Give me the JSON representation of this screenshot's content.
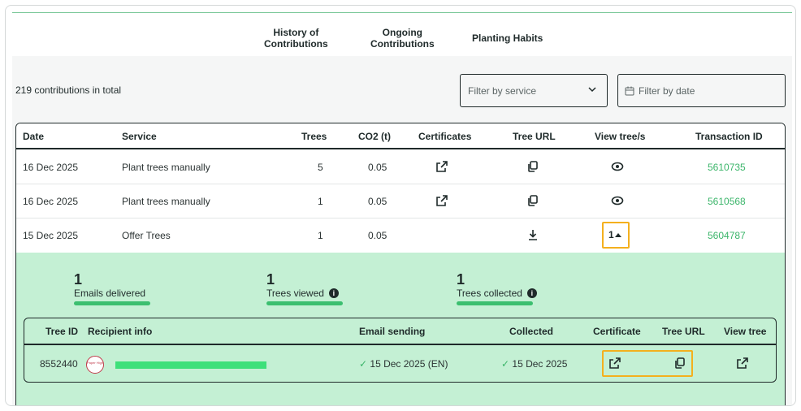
{
  "tabs": [
    {
      "label_line1": "History of",
      "label_line2": "Contributions"
    },
    {
      "label_line1": "Ongoing",
      "label_line2": "Contributions"
    },
    {
      "label_line1": "Planting Habits",
      "label_line2": ""
    }
  ],
  "total_text": "219 contributions in total",
  "filters": {
    "service_placeholder": "Filter by service",
    "date_placeholder": "Filter by date"
  },
  "columns": [
    "Date",
    "Service",
    "Trees",
    "CO2 (t)",
    "Certificates",
    "Tree URL",
    "View tree/s",
    "Transaction ID"
  ],
  "rows": [
    {
      "date": "16 Dec 2025",
      "service": "Plant trees manually",
      "trees": "5",
      "co2": "0.05",
      "certificate_icon": "external-link-icon",
      "tree_url_icon": "copy-icon",
      "view_icon": "eye-icon",
      "transaction": "5610735"
    },
    {
      "date": "16 Dec 2025",
      "service": "Plant trees manually",
      "trees": "1",
      "co2": "0.05",
      "certificate_icon": "external-link-icon",
      "tree_url_icon": "copy-icon",
      "view_icon": "eye-icon",
      "transaction": "5610568"
    },
    {
      "date": "15 Dec 2025",
      "service": "Offer Trees",
      "trees": "1",
      "co2": "0.05",
      "certificate_icon": "",
      "tree_url_icon": "download-icon",
      "view_toggle": "1",
      "transaction": "5604787"
    }
  ],
  "stats": [
    {
      "value": "1",
      "label": "Emails delivered",
      "info": false
    },
    {
      "value": "1",
      "label": "Trees viewed",
      "info": true
    },
    {
      "value": "1",
      "label": "Trees collected",
      "info": true
    }
  ],
  "sub_columns": [
    "Tree ID",
    "Recipient info",
    "Email sending",
    "Collected",
    "Certificate",
    "Tree URL",
    "View tree"
  ],
  "sub_rows": [
    {
      "tree_id": "8552440",
      "avatar_text": "Paper High",
      "email_sending": "15 Dec 2025 (EN)",
      "collected": "15 Dec 2025"
    }
  ],
  "colors": {
    "accent": "#3bbf6f",
    "link": "#3bb56a",
    "highlight": "#f4b01e",
    "expanded_bg": "#c4f0d4"
  }
}
